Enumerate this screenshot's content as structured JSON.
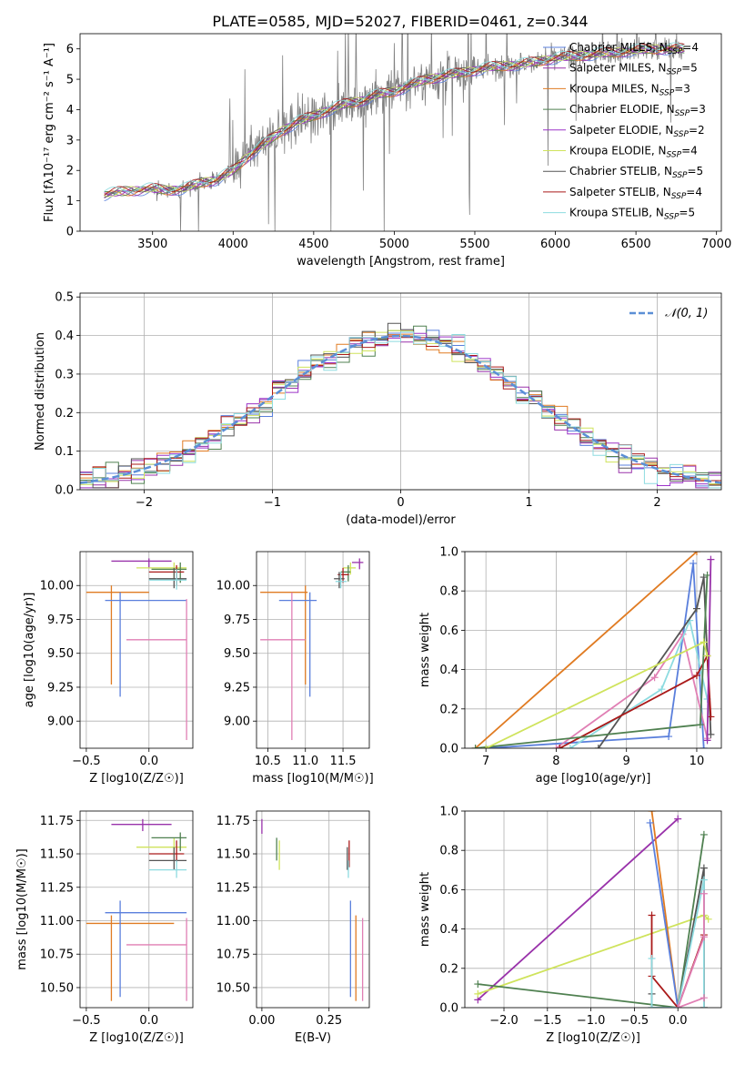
{
  "figure": {
    "title": "PLATE=0585, MJD=52027, FIBERID=0461, z=0.344"
  },
  "colors": {
    "chabrier_miles": "#5a7fdc",
    "salpeter_miles": "#9932aa",
    "kroupa_miles": "#e07b22",
    "chabrier_elodie": "#4f8050",
    "salpeter_elodie": "#9c33c8",
    "kroupa_elodie": "#cfe35c",
    "chabrier_stelib": "#555555",
    "salpeter_stelib": "#aa1a1a",
    "kroupa_stelib": "#8ddbe0",
    "pink": "#e07fb4",
    "data_gray": "#808080",
    "normal": "#5b8fd6"
  },
  "chart_data": [
    {
      "id": "spectrum",
      "type": "line",
      "title": "PLATE=0585, MJD=52027, FIBERID=0461, z=0.344",
      "xlabel": "wavelength [Angstrom, rest frame]",
      "ylabel": "Flux [fλ10⁻¹⁷ erg cm⁻² s⁻¹ A⁻¹]",
      "xlim": [
        3050,
        7030
      ],
      "ylim": [
        0,
        6.5
      ],
      "xticks": [
        3500,
        4000,
        4500,
        5000,
        5500,
        6000,
        6500,
        7000
      ],
      "yticks": [
        0,
        1,
        2,
        3,
        4,
        5,
        6
      ],
      "legend_position": "top-right",
      "continuum": {
        "x": [
          3200,
          3300,
          3400,
          3500,
          3600,
          3700,
          3800,
          3900,
          4000,
          4100,
          4200,
          4300,
          4400,
          4500,
          4600,
          4700,
          4800,
          4900,
          5000,
          5200,
          5400,
          5600,
          5800,
          6000,
          6200,
          6400,
          6600,
          6800
        ],
        "y": [
          1.2,
          1.3,
          1.35,
          1.4,
          1.35,
          1.4,
          1.6,
          1.7,
          2.0,
          2.5,
          2.9,
          3.3,
          3.6,
          3.8,
          4.0,
          4.2,
          4.3,
          4.5,
          4.6,
          5.0,
          5.2,
          5.4,
          5.5,
          5.7,
          5.8,
          5.9,
          6.0,
          6.0
        ]
      },
      "series": [
        {
          "name": "Chabrier MILES, N_SSP=4",
          "color": "#5a7fdc"
        },
        {
          "name": "Salpeter MILES, N_SSP=5",
          "color": "#9932aa"
        },
        {
          "name": "Kroupa MILES, N_SSP=3",
          "color": "#e07b22"
        },
        {
          "name": "Chabrier ELODIE, N_SSP=3",
          "color": "#4f8050"
        },
        {
          "name": "Salpeter ELODIE, N_SSP=2",
          "color": "#9c33c8"
        },
        {
          "name": "Kroupa ELODIE, N_SSP=4",
          "color": "#cfe35c"
        },
        {
          "name": "Chabrier STELIB, N_SSP=5",
          "color": "#555555"
        },
        {
          "name": "Salpeter STELIB, N_SSP=4",
          "color": "#aa1a1a"
        },
        {
          "name": "Kroupa STELIB, N_SSP=5",
          "color": "#8ddbe0"
        }
      ]
    },
    {
      "id": "residuals",
      "type": "histogram",
      "xlabel": "(data-model)/error",
      "ylabel": "Normed distribution",
      "xlim": [
        -2.5,
        2.5
      ],
      "ylim": [
        0,
        0.51
      ],
      "xticks": [
        -2,
        -1,
        0,
        1,
        2
      ],
      "yticks": [
        0.0,
        0.1,
        0.2,
        0.3,
        0.4,
        0.5
      ],
      "grid": true,
      "legend_position": "top-right",
      "legend": "𝒩(0, 1)",
      "bin_width": 0.1
    },
    {
      "id": "age_vs_Z",
      "type": "errorbar",
      "xlabel": "Z [log10(Z/Z☉)]",
      "ylabel": "age  [log10(age/yr)]",
      "xlim": [
        -0.55,
        0.35
      ],
      "ylim": [
        8.8,
        10.25
      ],
      "xticks": [
        -0.5,
        0.0
      ],
      "yticks": [
        9.0,
        9.25,
        9.5,
        9.75,
        10.0
      ],
      "grid": true,
      "points": [
        {
          "x": 0.0,
          "y": 10.18,
          "xlo": -0.3,
          "xhi": 0.18,
          "ylo": 10.13,
          "yhi": 10.2,
          "color": "#9932aa"
        },
        {
          "x": 0.2,
          "y": 10.13,
          "xlo": -0.1,
          "xhi": 0.3,
          "ylo": 10.05,
          "yhi": 10.17,
          "color": "#cfe35c"
        },
        {
          "x": 0.25,
          "y": 10.12,
          "xlo": 0.02,
          "xhi": 0.3,
          "ylo": 10.02,
          "yhi": 10.17,
          "color": "#4f8050"
        },
        {
          "x": 0.22,
          "y": 10.1,
          "xlo": 0.0,
          "xhi": 0.28,
          "ylo": 10.0,
          "yhi": 10.15,
          "color": "#aa1a1a"
        },
        {
          "x": 0.2,
          "y": 10.05,
          "xlo": 0.0,
          "xhi": 0.3,
          "ylo": 9.98,
          "yhi": 10.13,
          "color": "#555555"
        },
        {
          "x": 0.22,
          "y": 10.04,
          "xlo": 0.0,
          "xhi": 0.3,
          "ylo": 9.97,
          "yhi": 10.12,
          "color": "#8ddbe0"
        },
        {
          "x": -0.3,
          "y": 9.95,
          "xlo": -0.5,
          "xhi": 0.0,
          "ylo": 9.27,
          "yhi": 10.0,
          "color": "#e07b22"
        },
        {
          "x": -0.23,
          "y": 9.89,
          "xlo": -0.35,
          "xhi": 0.3,
          "ylo": 9.18,
          "yhi": 9.95,
          "color": "#5a7fdc"
        },
        {
          "x": 0.3,
          "y": 9.6,
          "xlo": -0.18,
          "xhi": 0.3,
          "ylo": 8.86,
          "yhi": 9.9,
          "color": "#e07fb4"
        }
      ]
    },
    {
      "id": "age_vs_mass",
      "type": "errorbar",
      "xlabel": "mass [log10(M/M☉)]",
      "ylabel": "",
      "xlim": [
        10.35,
        11.85
      ],
      "ylim": [
        8.8,
        10.25
      ],
      "xticks": [
        10.5,
        11.0,
        11.5
      ],
      "yticks": [
        9.0,
        9.25,
        9.5,
        9.75,
        10.0
      ],
      "grid": true,
      "points": [
        {
          "x": 11.72,
          "y": 10.17,
          "xlo": 11.62,
          "xhi": 11.77,
          "ylo": 10.12,
          "yhi": 10.2,
          "color": "#9932aa"
        },
        {
          "x": 11.6,
          "y": 10.13,
          "xlo": 11.5,
          "xhi": 11.67,
          "ylo": 10.08,
          "yhi": 10.17,
          "color": "#cfe35c"
        },
        {
          "x": 11.57,
          "y": 10.1,
          "xlo": 11.47,
          "xhi": 11.6,
          "ylo": 10.03,
          "yhi": 10.15,
          "color": "#4f8050"
        },
        {
          "x": 11.5,
          "y": 10.08,
          "xlo": 11.43,
          "xhi": 11.58,
          "ylo": 10.02,
          "yhi": 10.13,
          "color": "#aa1a1a"
        },
        {
          "x": 11.45,
          "y": 10.05,
          "xlo": 11.38,
          "xhi": 11.52,
          "ylo": 9.98,
          "yhi": 10.1,
          "color": "#555555"
        },
        {
          "x": 11.47,
          "y": 10.03,
          "xlo": 11.4,
          "xhi": 11.55,
          "ylo": 9.98,
          "yhi": 10.1,
          "color": "#8ddbe0"
        },
        {
          "x": 11.0,
          "y": 9.95,
          "xlo": 10.4,
          "xhi": 11.03,
          "ylo": 9.27,
          "yhi": 10.0,
          "color": "#e07b22"
        },
        {
          "x": 11.06,
          "y": 9.89,
          "xlo": 10.65,
          "xhi": 11.15,
          "ylo": 9.18,
          "yhi": 9.95,
          "color": "#5a7fdc"
        },
        {
          "x": 10.82,
          "y": 9.6,
          "xlo": 10.4,
          "xhi": 11.0,
          "ylo": 8.86,
          "yhi": 9.95,
          "color": "#e07fb4"
        }
      ]
    },
    {
      "id": "mass_weight_vs_age",
      "type": "line",
      "xlabel": "age  [log10(age/yr)]",
      "ylabel": "mass weight",
      "xlim": [
        6.7,
        10.35
      ],
      "ylim": [
        0,
        1.0
      ],
      "xticks": [
        7,
        8,
        9,
        10
      ],
      "yticks": [
        0.0,
        0.2,
        0.4,
        0.6,
        0.8,
        1.0
      ],
      "grid": true,
      "series": [
        {
          "color": "#e07b22",
          "x": [
            6.85,
            10.0
          ],
          "y": [
            0.0,
            1.0
          ]
        },
        {
          "color": "#5a7fdc",
          "x": [
            7.0,
            9.6,
            9.95,
            10.1
          ],
          "y": [
            0.0,
            0.06,
            0.94,
            0.0
          ]
        },
        {
          "color": "#e07fb4",
          "x": [
            8.0,
            9.4,
            9.8,
            10.15
          ],
          "y": [
            0.0,
            0.36,
            0.58,
            0.05
          ]
        },
        {
          "color": "#8ddbe0",
          "x": [
            8.2,
            9.5,
            9.9,
            10.15
          ],
          "y": [
            0.0,
            0.3,
            0.65,
            0.25
          ]
        },
        {
          "color": "#555555",
          "x": [
            8.6,
            10.0,
            10.1,
            10.2
          ],
          "y": [
            0.0,
            0.71,
            0.87,
            0.07
          ]
        },
        {
          "color": "#aa1a1a",
          "x": [
            8.05,
            10.0,
            10.15,
            10.2
          ],
          "y": [
            0.0,
            0.37,
            0.47,
            0.16
          ]
        },
        {
          "color": "#4f8050",
          "x": [
            6.85,
            10.05,
            10.15
          ],
          "y": [
            0.0,
            0.12,
            0.88
          ]
        },
        {
          "color": "#9932aa",
          "x": [
            10.15,
            10.2
          ],
          "y": [
            0.04,
            0.96
          ]
        },
        {
          "color": "#cfe35c",
          "x": [
            7.0,
            10.1,
            10.15
          ],
          "y": [
            0.0,
            0.54,
            0.47
          ]
        }
      ]
    },
    {
      "id": "mass_vs_Z",
      "type": "errorbar",
      "xlabel": "Z [log10(Z/Z☉)]",
      "ylabel": "mass [log10(M/M☉)]",
      "xlim": [
        -0.55,
        0.35
      ],
      "ylim": [
        10.35,
        11.82
      ],
      "xticks": [
        -0.5,
        0.0
      ],
      "yticks": [
        10.5,
        10.75,
        11.0,
        11.25,
        11.5,
        11.75
      ],
      "grid": true,
      "points": [
        {
          "x": -0.05,
          "y": 11.72,
          "xlo": -0.3,
          "xhi": 0.18,
          "ylo": 11.67,
          "yhi": 11.76,
          "color": "#9932aa"
        },
        {
          "x": 0.2,
          "y": 11.55,
          "xlo": -0.1,
          "xhi": 0.3,
          "ylo": 11.48,
          "yhi": 11.62,
          "color": "#cfe35c"
        },
        {
          "x": 0.25,
          "y": 11.62,
          "xlo": 0.02,
          "xhi": 0.3,
          "ylo": 11.52,
          "yhi": 11.66,
          "color": "#4f8050"
        },
        {
          "x": 0.22,
          "y": 11.5,
          "xlo": 0.0,
          "xhi": 0.28,
          "ylo": 11.44,
          "yhi": 11.6,
          "color": "#aa1a1a"
        },
        {
          "x": 0.2,
          "y": 11.45,
          "xlo": 0.0,
          "xhi": 0.3,
          "ylo": 11.38,
          "yhi": 11.55,
          "color": "#555555"
        },
        {
          "x": 0.22,
          "y": 11.38,
          "xlo": 0.0,
          "xhi": 0.3,
          "ylo": 11.32,
          "yhi": 11.45,
          "color": "#8ddbe0"
        },
        {
          "x": -0.3,
          "y": 10.98,
          "xlo": -0.5,
          "xhi": 0.2,
          "ylo": 10.4,
          "yhi": 11.04,
          "color": "#e07b22"
        },
        {
          "x": -0.23,
          "y": 11.06,
          "xlo": -0.35,
          "xhi": 0.3,
          "ylo": 10.43,
          "yhi": 11.15,
          "color": "#5a7fdc"
        },
        {
          "x": 0.3,
          "y": 10.82,
          "xlo": -0.18,
          "xhi": 0.3,
          "ylo": 10.4,
          "yhi": 11.02,
          "color": "#e07fb4"
        }
      ]
    },
    {
      "id": "mass_vs_EBV",
      "type": "errorbar",
      "xlabel": "E(B-V)",
      "ylabel": "",
      "xlim": [
        -0.02,
        0.4
      ],
      "ylim": [
        10.35,
        11.82
      ],
      "xticks": [
        0.0,
        0.25
      ],
      "yticks": [
        10.5,
        10.75,
        11.0,
        11.25,
        11.5,
        11.75
      ],
      "grid": true,
      "points": [
        {
          "x": 0.0,
          "y": 11.72,
          "ylo": 11.65,
          "yhi": 11.76,
          "color": "#9932aa"
        },
        {
          "x": 0.065,
          "y": 11.5,
          "ylo": 11.38,
          "yhi": 11.6,
          "color": "#cfe35c"
        },
        {
          "x": 0.055,
          "y": 11.55,
          "ylo": 11.45,
          "yhi": 11.62,
          "color": "#4f8050"
        },
        {
          "x": 0.325,
          "y": 11.5,
          "ylo": 11.4,
          "yhi": 11.6,
          "color": "#aa1a1a"
        },
        {
          "x": 0.318,
          "y": 11.45,
          "ylo": 11.38,
          "yhi": 11.55,
          "color": "#555555"
        },
        {
          "x": 0.322,
          "y": 11.38,
          "ylo": 11.32,
          "yhi": 11.45,
          "color": "#8ddbe0"
        },
        {
          "x": 0.35,
          "y": 10.98,
          "ylo": 10.4,
          "yhi": 11.04,
          "color": "#e07b22"
        },
        {
          "x": 0.33,
          "y": 11.06,
          "ylo": 10.43,
          "yhi": 11.15,
          "color": "#5a7fdc"
        },
        {
          "x": 0.375,
          "y": 10.82,
          "ylo": 10.4,
          "yhi": 11.02,
          "color": "#e07fb4"
        }
      ]
    },
    {
      "id": "mass_weight_vs_Z",
      "type": "line",
      "xlabel": "Z [log10(Z/Z☉)]",
      "ylabel": "mass weight",
      "xlim": [
        -2.45,
        0.5
      ],
      "ylim": [
        0,
        1.0
      ],
      "xticks": [
        -2.0,
        -1.5,
        -1.0,
        -0.5,
        0.0
      ],
      "yticks": [
        0.0,
        0.2,
        0.4,
        0.6,
        0.8,
        1.0
      ],
      "grid": true,
      "series": [
        {
          "color": "#9932aa",
          "x": [
            -2.3,
            0.0
          ],
          "y": [
            0.04,
            0.96
          ]
        },
        {
          "color": "#cfe35c",
          "x": [
            -2.3,
            0.3,
            0.35
          ],
          "y": [
            0.07,
            0.47,
            0.45
          ]
        },
        {
          "color": "#4f8050",
          "x": [
            -2.3,
            0.0,
            0.3
          ],
          "y": [
            0.12,
            0.0,
            0.88
          ]
        },
        {
          "color": "#e07b22",
          "x": [
            -0.3,
            0.0
          ],
          "y": [
            1.0,
            0.0
          ]
        },
        {
          "color": "#5a7fdc",
          "x": [
            -0.32,
            0.0
          ],
          "y": [
            0.94,
            0.0
          ]
        },
        {
          "color": "#555555",
          "x": [
            -0.3,
            -0.3,
            0.0,
            0.3,
            0.3
          ],
          "y": [
            0.07,
            0.0,
            0.0,
            0.71,
            0.0
          ]
        },
        {
          "color": "#aa1a1a",
          "x": [
            -0.3,
            -0.3,
            0.0,
            0.3,
            0.3
          ],
          "y": [
            0.47,
            0.16,
            0.0,
            0.37,
            0.0
          ]
        },
        {
          "color": "#8ddbe0",
          "x": [
            -0.3,
            -0.3,
            0.0,
            0.3,
            0.3
          ],
          "y": [
            0.25,
            0.0,
            0.0,
            0.65,
            0.0
          ]
        },
        {
          "color": "#e07fb4",
          "x": [
            0.3,
            0.3,
            0.0,
            0.3
          ],
          "y": [
            0.58,
            0.36,
            0.0,
            0.05
          ]
        }
      ]
    }
  ]
}
